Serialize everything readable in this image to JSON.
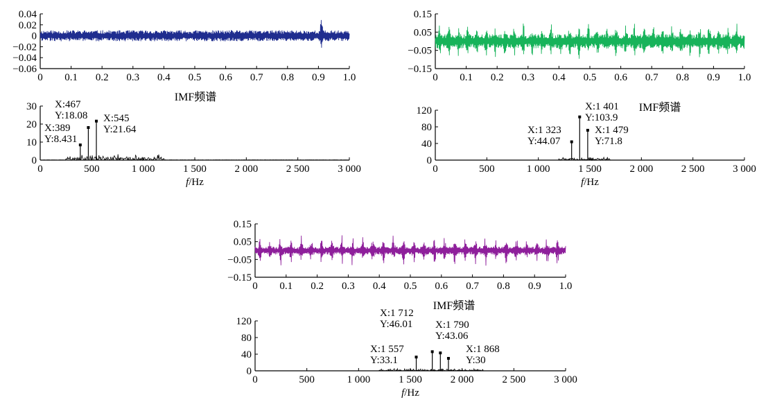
{
  "colors": {
    "blue": "#1f2d8f",
    "green": "#17b35a",
    "purple": "#8e1f9b",
    "axis": "#000000"
  },
  "chart_data": [
    {
      "type": "line",
      "panel": "top-left-time",
      "color": "#1f2d8f",
      "xlim": [
        0,
        1.0
      ],
      "ylim": [
        -0.06,
        0.04
      ],
      "xticks": [
        "0",
        "0.1",
        "0.2",
        "0.3",
        "0.4",
        "0.5",
        "0.6",
        "0.7",
        "0.8",
        "0.9",
        "1.0"
      ],
      "yticks": [
        "0.04",
        "0.02",
        "0",
        "−0.02",
        "−0.04",
        "−0.06"
      ],
      "signal": {
        "amplitude": 0.01,
        "peak_amplitude": 0.03,
        "peak_at": 0.91
      }
    },
    {
      "type": "line",
      "panel": "top-left-spectrum",
      "title": "IMF频谱",
      "xlabel_italic": "f",
      "xlabel_unit": "/Hz",
      "xlim": [
        0,
        3000
      ],
      "ylim": [
        0,
        30
      ],
      "xticks": [
        "0",
        "500",
        "1 000",
        "1 500",
        "2 000",
        "2 500",
        "3 000"
      ],
      "yticks": [
        "30",
        "20",
        "10",
        "0"
      ],
      "peaks": [
        {
          "x": 389,
          "y": 8.431,
          "label_x": "X:389",
          "label_y": "Y:8.431"
        },
        {
          "x": 467,
          "y": 18.08,
          "label_x": "X:467",
          "label_y": "Y:18.08"
        },
        {
          "x": 545,
          "y": 21.64,
          "label_x": "X:545",
          "label_y": "Y:21.64"
        }
      ]
    },
    {
      "type": "line",
      "panel": "top-right-time",
      "color": "#17b35a",
      "xlim": [
        0,
        1.0
      ],
      "ylim": [
        -0.15,
        0.15
      ],
      "xticks": [
        "0",
        "0.1",
        "0.2",
        "0.3",
        "0.4",
        "0.5",
        "0.6",
        "0.7",
        "0.8",
        "0.9",
        "1.0"
      ],
      "yticks": [
        "0.15",
        "0.05",
        "−0.05",
        "−0.15"
      ],
      "signal": {
        "amplitude": 0.07,
        "burst_amplitude": 0.1
      }
    },
    {
      "type": "line",
      "panel": "top-right-spectrum",
      "title": "IMF频谱",
      "xlabel_italic": "f",
      "xlabel_unit": "/Hz",
      "xlim": [
        0,
        3000
      ],
      "ylim": [
        0,
        120
      ],
      "xticks": [
        "0",
        "500",
        "1 000",
        "1 500",
        "2 000",
        "2 500",
        "3 000"
      ],
      "yticks": [
        "120",
        "80",
        "40",
        "0"
      ],
      "peaks": [
        {
          "x": 1323,
          "y": 44.07,
          "label_x": "X:1 323",
          "label_y": "Y:44.07"
        },
        {
          "x": 1401,
          "y": 103.9,
          "label_x": "X:1 401",
          "label_y": "Y:103.9"
        },
        {
          "x": 1479,
          "y": 71.8,
          "label_x": "X:1 479",
          "label_y": "Y:71.8"
        }
      ]
    },
    {
      "type": "line",
      "panel": "bottom-time",
      "color": "#8e1f9b",
      "xlim": [
        0,
        1.0
      ],
      "ylim": [
        -0.15,
        0.15
      ],
      "xticks": [
        "0",
        "0.1",
        "0.2",
        "0.3",
        "0.4",
        "0.5",
        "0.6",
        "0.7",
        "0.8",
        "0.9",
        "1.0"
      ],
      "yticks": [
        "0.15",
        "0.05",
        "−0.05",
        "−0.15"
      ],
      "signal": {
        "amplitude": 0.04,
        "burst_amplitude": 0.09
      }
    },
    {
      "type": "line",
      "panel": "bottom-spectrum",
      "title": "IMF频谱",
      "xlabel_italic": "f",
      "xlabel_unit": "/Hz",
      "xlim": [
        0,
        3000
      ],
      "ylim": [
        0,
        120
      ],
      "xticks": [
        "0",
        "500",
        "1 000",
        "1 500",
        "2 000",
        "2 500",
        "3 000"
      ],
      "yticks": [
        "120",
        "80",
        "40",
        "0"
      ],
      "peaks": [
        {
          "x": 1557,
          "y": 33.1,
          "label_x": "X:1 557",
          "label_y": "Y:33.1"
        },
        {
          "x": 1712,
          "y": 46.01,
          "label_x": "X:1 712",
          "label_y": "Y:46.01"
        },
        {
          "x": 1790,
          "y": 43.06,
          "label_x": "X:1 790",
          "label_y": "Y:43.06"
        },
        {
          "x": 1868,
          "y": 30,
          "label_x": "X:1 868",
          "label_y": "Y:30"
        }
      ]
    }
  ]
}
